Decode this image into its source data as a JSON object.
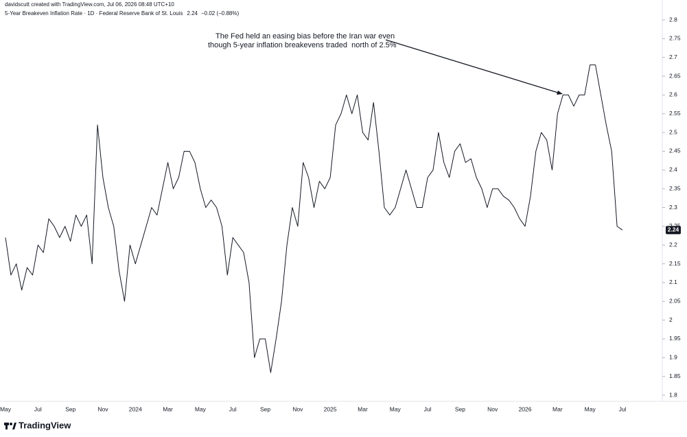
{
  "chart_data": {
    "type": "line",
    "attribution": "davidscutt created with TradingView.com, Jul 06, 2026 08:48 UTC+10",
    "title": "5-Year Breakeven Inflation Rate · 1D · Federal Reserve Bank of St. Louis",
    "change": "−0.02 (−0.88%)",
    "annotation": [
      "The Fed held an easing bias before the Iran war even",
      "though 5-year inflation breakevens traded  north of 2.5%"
    ],
    "brand": "TradingView",
    "color": "#131722",
    "categories": [
      "May",
      null,
      null,
      null,
      null,
      null,
      "Jul",
      null,
      null,
      null,
      null,
      null,
      "Sep",
      null,
      null,
      null,
      null,
      null,
      "Nov",
      null,
      null,
      null,
      null,
      null,
      "2024",
      null,
      null,
      null,
      null,
      null,
      "Mar",
      null,
      null,
      null,
      null,
      null,
      "May",
      null,
      null,
      null,
      null,
      null,
      "Jul",
      null,
      null,
      null,
      null,
      null,
      "Sep",
      null,
      null,
      null,
      null,
      null,
      "Nov",
      null,
      null,
      null,
      null,
      null,
      "2025",
      null,
      null,
      null,
      null,
      null,
      "Mar",
      null,
      null,
      null,
      null,
      null,
      "May",
      null,
      null,
      null,
      null,
      null,
      "Jul",
      null,
      null,
      null,
      null,
      null,
      "Sep",
      null,
      null,
      null,
      null,
      null,
      "Nov",
      null,
      null,
      null,
      null,
      null,
      "2026",
      null,
      null,
      null,
      null,
      null,
      "Mar",
      null,
      null,
      null,
      null,
      null,
      "May",
      null,
      null,
      null,
      null,
      null,
      "Jul"
    ],
    "values": [
      2.22,
      2.12,
      2.15,
      2.08,
      2.14,
      2.12,
      2.2,
      2.18,
      2.27,
      2.25,
      2.22,
      2.25,
      2.21,
      2.28,
      2.25,
      2.28,
      2.15,
      2.52,
      2.38,
      2.3,
      2.25,
      2.13,
      2.05,
      2.2,
      2.15,
      2.2,
      2.25,
      2.3,
      2.28,
      2.35,
      2.42,
      2.35,
      2.38,
      2.45,
      2.45,
      2.42,
      2.35,
      2.3,
      2.32,
      2.3,
      2.25,
      2.12,
      2.22,
      2.2,
      2.18,
      2.1,
      1.9,
      1.95,
      1.95,
      1.86,
      1.95,
      2.05,
      2.2,
      2.3,
      2.25,
      2.42,
      2.38,
      2.3,
      2.37,
      2.35,
      2.38,
      2.52,
      2.55,
      2.6,
      2.55,
      2.6,
      2.5,
      2.48,
      2.58,
      2.45,
      2.3,
      2.28,
      2.3,
      2.35,
      2.4,
      2.35,
      2.3,
      2.3,
      2.38,
      2.4,
      2.5,
      2.42,
      2.38,
      2.45,
      2.47,
      2.42,
      2.43,
      2.38,
      2.35,
      2.3,
      2.35,
      2.35,
      2.33,
      2.32,
      2.3,
      2.27,
      2.25,
      2.33,
      2.45,
      2.5,
      2.48,
      2.4,
      2.55,
      2.6,
      2.6,
      2.57,
      2.6,
      2.6,
      2.68,
      2.68,
      2.6,
      2.52,
      2.45,
      2.25,
      2.24
    ],
    "ylim": [
      1.8,
      2.8
    ],
    "yticks": [
      1.8,
      1.85,
      1.9,
      1.95,
      2,
      2.05,
      2.1,
      2.15,
      2.2,
      2.25,
      2.3,
      2.35,
      2.4,
      2.45,
      2.5,
      2.55,
      2.6,
      2.65,
      2.7,
      2.75,
      2.8
    ]
  }
}
